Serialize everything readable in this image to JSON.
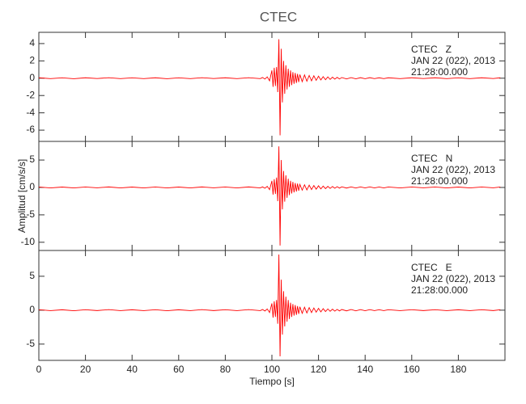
{
  "chart_data": [
    {
      "type": "line",
      "title": "CTEC",
      "color": "#ff0000",
      "annotations": [
        "CTEC   Z",
        "JAN 22 (022), 2013",
        "21:28:00.000"
      ],
      "xlim": [
        0,
        200
      ],
      "xticks": [
        0,
        20,
        40,
        60,
        80,
        100,
        120,
        140,
        160,
        180
      ],
      "show_xtick_labels": false,
      "ylim": [
        -7.3,
        5.3
      ],
      "yticks": [
        -6,
        -4,
        -2,
        0,
        2,
        4
      ],
      "x": [
        0,
        5,
        10,
        15,
        20,
        25,
        30,
        35,
        40,
        45,
        50,
        55,
        60,
        65,
        70,
        75,
        80,
        85,
        90,
        95,
        96,
        97,
        98,
        99,
        100,
        100.5,
        101,
        101.5,
        102,
        102.5,
        103,
        103.5,
        104,
        104.5,
        105,
        105.5,
        106,
        106.5,
        107,
        107.5,
        108,
        108.5,
        109,
        109.5,
        110,
        110.5,
        111,
        111.5,
        112,
        113,
        114,
        115,
        116,
        117,
        118,
        119,
        120,
        121,
        122,
        123,
        124,
        125,
        126,
        127,
        128,
        129,
        130,
        132,
        134,
        136,
        138,
        140,
        142,
        144,
        146,
        148,
        150,
        155,
        160,
        165,
        170,
        175,
        180,
        185,
        190,
        195,
        198
      ],
      "values": [
        0.05,
        -0.05,
        0.04,
        -0.06,
        0.05,
        -0.04,
        0.06,
        -0.05,
        0.04,
        -0.05,
        0.05,
        -0.06,
        0.04,
        -0.05,
        0.06,
        -0.04,
        0.05,
        -0.05,
        0.06,
        -0.05,
        0.08,
        -0.1,
        0.15,
        -0.3,
        0.9,
        -1.0,
        1.2,
        -0.9,
        1.3,
        -1.6,
        4.5,
        -6.6,
        3.4,
        -2.8,
        2.0,
        -1.8,
        1.5,
        -1.3,
        1.1,
        -1.0,
        0.9,
        -0.8,
        0.7,
        -0.65,
        0.6,
        -0.55,
        0.5,
        -0.45,
        0.42,
        -0.4,
        0.38,
        -0.35,
        0.32,
        -0.3,
        0.28,
        -0.25,
        0.23,
        -0.2,
        0.18,
        -0.17,
        0.15,
        -0.14,
        0.12,
        -0.11,
        0.1,
        -0.09,
        0.08,
        -0.08,
        0.07,
        -0.07,
        0.06,
        -0.06,
        0.06,
        -0.05,
        0.05,
        -0.05,
        0.05,
        -0.05,
        0.05,
        -0.04,
        0.05,
        -0.05,
        0.04,
        -0.05,
        0.05,
        -0.04,
        0.05
      ]
    },
    {
      "type": "line",
      "ylabel": "Amplitud [cm/s/s]",
      "color": "#ff0000",
      "annotations": [
        "CTEC   N",
        "JAN 22 (022), 2013",
        "21:28:00.000"
      ],
      "xlim": [
        0,
        200
      ],
      "xticks": [
        0,
        20,
        40,
        60,
        80,
        100,
        120,
        140,
        160,
        180
      ],
      "show_xtick_labels": false,
      "ylim": [
        -11.5,
        8.4
      ],
      "yticks": [
        -10,
        -5,
        0,
        5
      ],
      "x": [
        0,
        5,
        10,
        15,
        20,
        25,
        30,
        35,
        40,
        45,
        50,
        55,
        60,
        65,
        70,
        75,
        80,
        85,
        90,
        95,
        96,
        97,
        98,
        99,
        100,
        100.5,
        101,
        101.5,
        102,
        102.5,
        103,
        103.5,
        104,
        104.5,
        105,
        105.5,
        106,
        106.5,
        107,
        107.5,
        108,
        108.5,
        109,
        109.5,
        110,
        110.5,
        111,
        111.5,
        112,
        113,
        114,
        115,
        116,
        117,
        118,
        119,
        120,
        121,
        122,
        123,
        124,
        125,
        126,
        127,
        128,
        129,
        130,
        132,
        134,
        136,
        138,
        140,
        142,
        144,
        146,
        148,
        150,
        155,
        160,
        165,
        170,
        175,
        180,
        185,
        190,
        195,
        198
      ],
      "values": [
        0.08,
        -0.08,
        0.07,
        -0.09,
        0.08,
        -0.07,
        0.09,
        -0.08,
        0.07,
        -0.08,
        0.08,
        -0.09,
        0.07,
        -0.08,
        0.09,
        -0.07,
        0.08,
        -0.08,
        0.09,
        -0.08,
        0.1,
        -0.15,
        0.2,
        -0.4,
        1.2,
        -1.3,
        1.5,
        -1.2,
        1.8,
        -2.5,
        7.5,
        -10.6,
        5.0,
        -4.0,
        3.0,
        -2.6,
        2.2,
        -1.9,
        1.6,
        -1.4,
        1.2,
        -1.1,
        1.0,
        -0.9,
        0.8,
        -0.75,
        0.7,
        -0.6,
        0.55,
        -0.5,
        0.48,
        -0.45,
        0.42,
        -0.38,
        0.35,
        -0.32,
        0.3,
        -0.27,
        0.25,
        -0.22,
        0.2,
        -0.18,
        0.17,
        -0.15,
        0.14,
        -0.12,
        0.11,
        -0.11,
        0.1,
        -0.1,
        0.09,
        -0.09,
        0.09,
        -0.08,
        0.08,
        -0.08,
        0.08,
        -0.08,
        0.08,
        -0.07,
        0.08,
        -0.08,
        0.07,
        -0.08,
        0.08,
        -0.07,
        0.08
      ]
    },
    {
      "type": "line",
      "xlabel": "Tiempo [s]",
      "color": "#ff0000",
      "annotations": [
        "CTEC   E",
        "JAN 22 (022), 2013",
        "21:28:00.000"
      ],
      "xlim": [
        0,
        200
      ],
      "xticks": [
        0,
        20,
        40,
        60,
        80,
        100,
        120,
        140,
        160,
        180
      ],
      "show_xtick_labels": true,
      "ylim": [
        -7.4,
        8.8
      ],
      "yticks": [
        -5,
        0,
        5
      ],
      "x": [
        0,
        5,
        10,
        15,
        20,
        25,
        30,
        35,
        40,
        45,
        50,
        55,
        60,
        65,
        70,
        75,
        80,
        85,
        90,
        95,
        96,
        97,
        98,
        99,
        100,
        100.5,
        101,
        101.5,
        102,
        102.5,
        103,
        103.5,
        104,
        104.5,
        105,
        105.5,
        106,
        106.5,
        107,
        107.5,
        108,
        108.5,
        109,
        109.5,
        110,
        110.5,
        111,
        111.5,
        112,
        113,
        114,
        115,
        116,
        117,
        118,
        119,
        120,
        121,
        122,
        123,
        124,
        125,
        126,
        127,
        128,
        129,
        130,
        132,
        134,
        136,
        138,
        140,
        142,
        144,
        146,
        148,
        150,
        155,
        160,
        165,
        170,
        175,
        180,
        185,
        190,
        195,
        198
      ],
      "values": [
        0.07,
        -0.07,
        0.06,
        -0.08,
        0.07,
        -0.06,
        0.08,
        -0.07,
        0.06,
        -0.07,
        0.07,
        -0.08,
        0.06,
        -0.07,
        0.08,
        -0.06,
        0.07,
        -0.07,
        0.08,
        -0.07,
        0.1,
        -0.12,
        0.18,
        -0.35,
        1.0,
        -1.1,
        1.3,
        -1.0,
        1.5,
        -2.0,
        8.2,
        -6.8,
        4.5,
        -3.6,
        2.8,
        -2.4,
        2.0,
        -1.7,
        1.5,
        -1.3,
        1.1,
        -1.0,
        0.9,
        -0.8,
        0.75,
        -0.7,
        0.6,
        -0.55,
        0.5,
        -0.47,
        0.44,
        -0.41,
        0.38,
        -0.35,
        0.32,
        -0.3,
        0.27,
        -0.25,
        0.22,
        -0.2,
        0.18,
        -0.17,
        0.15,
        -0.14,
        0.12,
        -0.11,
        0.1,
        -0.1,
        0.09,
        -0.09,
        0.08,
        -0.08,
        0.08,
        -0.07,
        0.07,
        -0.07,
        0.07,
        -0.07,
        0.07,
        -0.06,
        0.07,
        -0.07,
        0.06,
        -0.07,
        0.07,
        -0.06,
        0.07
      ]
    }
  ]
}
